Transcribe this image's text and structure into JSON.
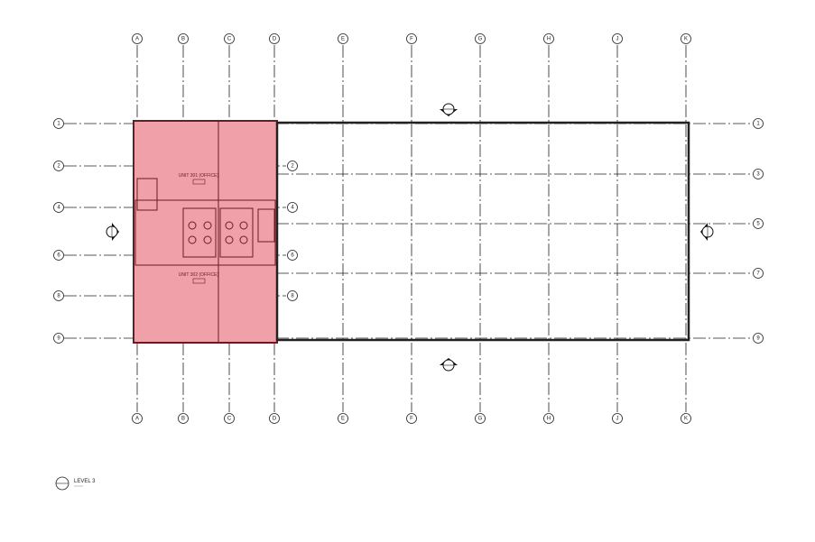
{
  "drawing": {
    "columns": [
      "A",
      "B",
      "C",
      "D",
      "E",
      "F",
      "G",
      "H",
      "J",
      "K"
    ],
    "rows_left": [
      "1",
      "2",
      "4",
      "6",
      "8",
      "9"
    ],
    "rows_mid": [
      "2",
      "4",
      "6",
      "8"
    ],
    "rows_right": [
      "1",
      "3",
      "5",
      "7",
      "9"
    ],
    "units": [
      {
        "name": "UNIT 301 (OFFICE)"
      },
      {
        "name": "UNIT 302 (OFFICE)"
      }
    ],
    "highlight_color": "#f0a0a8",
    "wall_color": "#6a1a22"
  },
  "view_title": {
    "label": "LEVEL 3"
  }
}
